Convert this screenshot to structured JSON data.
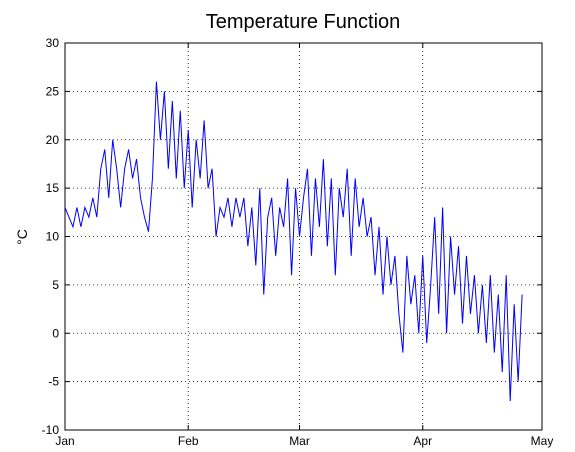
{
  "chart_data": {
    "type": "line",
    "title": "Temperature Function",
    "ylabel": "°C",
    "x": [
      0,
      1,
      2,
      3,
      4,
      5,
      6,
      7,
      8,
      9,
      10,
      11,
      12,
      13,
      14,
      15,
      16,
      17,
      18,
      19,
      20,
      21,
      22,
      23,
      24,
      25,
      26,
      27,
      28,
      29,
      30,
      31,
      32,
      33,
      34,
      35,
      36,
      37,
      38,
      39,
      40,
      41,
      42,
      43,
      44,
      45,
      46,
      47,
      48,
      49,
      50,
      51,
      52,
      53,
      54,
      55,
      56,
      57,
      58,
      59,
      60,
      61,
      62,
      63,
      64,
      65,
      66,
      67,
      68,
      69,
      70,
      71,
      72,
      73,
      74,
      75,
      76,
      77,
      78,
      79,
      80,
      81,
      82,
      83,
      84,
      85,
      86,
      87,
      88,
      89,
      90,
      91,
      92,
      93,
      94,
      95,
      96,
      97,
      98,
      99,
      100,
      101,
      102,
      103,
      104,
      105,
      106,
      107,
      108,
      109,
      110,
      111,
      112,
      113,
      114,
      115
    ],
    "series": [
      {
        "name": "Temperature",
        "color": "#0000ff",
        "values": [
          13,
          12,
          11,
          13,
          11,
          13,
          12,
          14,
          12,
          17,
          19,
          14,
          20,
          17,
          13,
          17,
          19,
          16,
          18,
          14,
          12,
          10.5,
          16,
          26,
          20,
          25,
          17,
          24,
          16,
          23,
          15,
          21,
          13,
          20,
          16,
          22,
          15,
          17,
          10,
          13,
          12,
          14,
          11,
          14,
          12,
          14,
          9,
          13,
          7,
          15,
          4,
          12,
          14,
          8,
          13,
          11,
          16,
          6,
          15,
          10,
          14,
          17,
          8,
          16,
          11,
          18,
          9,
          16,
          6,
          15,
          12,
          17,
          8,
          16,
          11,
          14,
          10,
          12,
          6,
          11,
          4,
          10,
          5,
          8,
          2,
          -2,
          8,
          3,
          6,
          0,
          8,
          -1,
          5,
          12,
          2,
          13,
          0,
          10,
          4,
          9,
          1,
          8,
          2,
          6,
          0,
          5,
          -1,
          6,
          -2,
          4,
          -4,
          6,
          -7,
          3,
          -5,
          4
        ]
      }
    ],
    "xlim": [
      0,
      120
    ],
    "xticks": [
      {
        "value": 0,
        "label": "Jan"
      },
      {
        "value": 31,
        "label": "Feb"
      },
      {
        "value": 59,
        "label": "Mar"
      },
      {
        "value": 90,
        "label": "Apr"
      },
      {
        "value": 120,
        "label": "May"
      }
    ],
    "ylim": [
      -10,
      30
    ],
    "yticks": [
      -10,
      -5,
      0,
      5,
      10,
      15,
      20,
      25,
      30
    ],
    "grid": true
  }
}
